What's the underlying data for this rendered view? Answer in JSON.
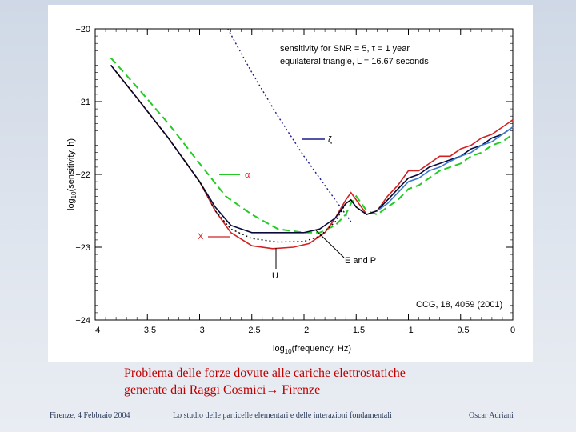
{
  "slide": {
    "caption_line1": "Problema delle forze dovute alle cariche elettrostatiche",
    "caption_line2": "generate dai Raggi Cosmici",
    "caption_arrow": "→",
    "caption_line2_end": " Firenze",
    "footer_left": "Firenze, 4 Febbraio 2004",
    "footer_center": "Lo studio delle particelle elementari e delle interazioni fondamentali",
    "footer_right": "Oscar Adriani"
  },
  "chart_data": {
    "type": "line",
    "xlabel": "log",
    "xlabel_sub": "10",
    "xlabel_rest": "(frequency, Hz)",
    "ylabel": "log",
    "ylabel_sub": "10",
    "ylabel_rest": "(sensitivity, h)",
    "xlim": [
      -4,
      0
    ],
    "ylim": [
      -24,
      -20
    ],
    "xticks": [
      -4,
      -3.5,
      -3,
      -2.5,
      -2,
      -1.5,
      -1,
      -0.5,
      0
    ],
    "xtick_labels": [
      "−4",
      "−3.5",
      "−3",
      "−2.5",
      "−2",
      "−1.5",
      "−1",
      "−0.5",
      "0"
    ],
    "yticks": [
      -20,
      -21,
      -22,
      -23,
      -24
    ],
    "ytick_labels": [
      "−20",
      "−21",
      "−22",
      "−23",
      "−24"
    ],
    "annotations": {
      "sens_line1": "sensitivity for SNR = 5,  τ = 1 year",
      "sens_line2": "equilateral triangle,  L = 16.67 seconds",
      "zeta": "ζ",
      "alpha": "α",
      "x_label": "X",
      "ep": "E and P",
      "u": "U",
      "ref": "CCG, 18, 4059 (2001)"
    },
    "series": [
      {
        "name": "ζ",
        "color": "#1a1a8a",
        "style": "dotted",
        "x": [
          -2.73,
          -2.5,
          -2.25,
          -2.0,
          -1.75,
          -1.55
        ],
        "y": [
          -20.0,
          -20.6,
          -21.2,
          -21.75,
          -22.25,
          -22.65
        ]
      },
      {
        "name": "α",
        "color": "#22cc22",
        "style": "dashed",
        "x": [
          -3.85,
          -3.6,
          -3.3,
          -3.0,
          -2.75,
          -2.5,
          -2.25,
          -2.0,
          -1.85,
          -1.7,
          -1.6,
          -1.55,
          -1.5,
          -1.45,
          -1.4,
          -1.3,
          -1.2,
          -1.1,
          -1.0,
          -0.9,
          -0.8,
          -0.7,
          -0.6,
          -0.5,
          -0.4,
          -0.3,
          -0.2,
          -0.1,
          0.0
        ],
        "y": [
          -20.4,
          -20.8,
          -21.3,
          -21.85,
          -22.3,
          -22.55,
          -22.75,
          -22.8,
          -22.8,
          -22.7,
          -22.55,
          -22.4,
          -22.3,
          -22.4,
          -22.5,
          -22.55,
          -22.45,
          -22.35,
          -22.2,
          -22.15,
          -22.05,
          -21.95,
          -21.9,
          -21.85,
          -21.75,
          -21.7,
          -21.6,
          -21.55,
          -21.45
        ]
      },
      {
        "name": "X",
        "color": "#d42020",
        "style": "solid",
        "x": [
          -3.85,
          -3.6,
          -3.3,
          -3.0,
          -2.85,
          -2.7,
          -2.5,
          -2.3,
          -2.1,
          -1.95,
          -1.8,
          -1.7,
          -1.6,
          -1.55,
          -1.5,
          -1.45,
          -1.4,
          -1.3,
          -1.2,
          -1.1,
          -1.0,
          -0.9,
          -0.8,
          -0.7,
          -0.6,
          -0.5,
          -0.4,
          -0.3,
          -0.2,
          -0.1,
          0.0
        ],
        "y": [
          -20.5,
          -20.95,
          -21.5,
          -22.1,
          -22.5,
          -22.8,
          -22.98,
          -23.02,
          -23.0,
          -22.95,
          -22.8,
          -22.6,
          -22.35,
          -22.25,
          -22.35,
          -22.45,
          -22.55,
          -22.5,
          -22.3,
          -22.15,
          -21.95,
          -21.95,
          -21.85,
          -21.75,
          -21.75,
          -21.65,
          -21.6,
          -21.5,
          -21.45,
          -21.35,
          -21.25
        ]
      },
      {
        "name": "E and P",
        "color": "#0a0a3a",
        "style": "solid",
        "x": [
          -3.85,
          -3.6,
          -3.3,
          -3.0,
          -2.85,
          -2.7,
          -2.5,
          -2.25,
          -2.0,
          -1.85,
          -1.7,
          -1.6,
          -1.55,
          -1.5,
          -1.45,
          -1.4,
          -1.3,
          -1.2,
          -1.1,
          -1.0,
          -0.9,
          -0.8,
          -0.7,
          -0.6,
          -0.5,
          -0.4,
          -0.3,
          -0.2,
          -0.1,
          0.0
        ],
        "y": [
          -20.5,
          -20.95,
          -21.5,
          -22.1,
          -22.45,
          -22.7,
          -22.8,
          -22.8,
          -22.8,
          -22.75,
          -22.6,
          -22.4,
          -22.35,
          -22.45,
          -22.5,
          -22.55,
          -22.5,
          -22.35,
          -22.2,
          -22.05,
          -22.0,
          -21.9,
          -21.85,
          -21.8,
          -21.75,
          -21.65,
          -21.6,
          -21.5,
          -21.45,
          -21.35
        ]
      },
      {
        "name": "U",
        "color": "#000000",
        "style": "dotted",
        "x": [
          -3.85,
          -3.6,
          -3.3,
          -3.0,
          -2.85,
          -2.7,
          -2.5,
          -2.25,
          -2.0,
          -1.85,
          -1.7,
          -1.6,
          -1.55,
          -1.5,
          -1.45,
          -1.4,
          -1.3,
          -1.2,
          -1.1,
          -1.0
        ],
        "y": [
          -20.5,
          -20.95,
          -21.5,
          -22.1,
          -22.5,
          -22.75,
          -22.88,
          -22.93,
          -22.92,
          -22.85,
          -22.65,
          -22.4,
          -22.35,
          -22.45,
          -22.5,
          -22.55,
          -22.5,
          -22.35,
          -22.2,
          -22.05
        ]
      },
      {
        "name": "",
        "color": "#3a7ad0",
        "style": "solid",
        "x": [
          -1.3,
          -1.2,
          -1.1,
          -1.0,
          -0.9,
          -0.8,
          -0.7,
          -0.6,
          -0.5,
          -0.4,
          -0.3,
          -0.2,
          -0.1,
          0.0
        ],
        "y": [
          -22.5,
          -22.4,
          -22.25,
          -22.1,
          -22.05,
          -21.95,
          -21.9,
          -21.82,
          -21.75,
          -21.7,
          -21.6,
          -21.55,
          -21.45,
          -21.35
        ]
      }
    ]
  }
}
